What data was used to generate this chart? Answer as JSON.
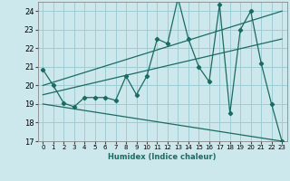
{
  "xlabel": "Humidex (Indice chaleur)",
  "ylabel": "",
  "bg_color": "#cce8ec",
  "grid_color": "#9fcdd4",
  "line_color": "#1a6b62",
  "xlim": [
    -0.5,
    23.5
  ],
  "ylim": [
    17,
    24.5
  ],
  "xticks": [
    0,
    1,
    2,
    3,
    4,
    5,
    6,
    7,
    8,
    9,
    10,
    11,
    12,
    13,
    14,
    15,
    16,
    17,
    18,
    19,
    20,
    21,
    22,
    23
  ],
  "yticks": [
    17,
    18,
    19,
    20,
    21,
    22,
    23,
    24
  ],
  "line1_x": [
    0,
    1,
    2,
    3,
    4,
    5,
    6,
    7,
    8,
    9,
    10,
    11,
    12,
    13,
    14,
    15,
    16,
    17,
    18,
    19,
    20,
    21,
    22,
    23
  ],
  "line1_y": [
    20.85,
    20.0,
    19.05,
    18.85,
    19.35,
    19.35,
    19.35,
    19.2,
    20.5,
    19.5,
    20.5,
    22.5,
    22.25,
    24.7,
    22.5,
    21.0,
    20.2,
    24.35,
    18.5,
    23.0,
    24.0,
    21.2,
    19.0,
    17.0
  ],
  "line2_x": [
    0,
    23
  ],
  "line2_y": [
    20.0,
    24.0
  ],
  "line3_x": [
    0,
    23
  ],
  "line3_y": [
    19.0,
    17.0
  ],
  "line4_x": [
    0,
    23
  ],
  "line4_y": [
    19.5,
    22.5
  ]
}
